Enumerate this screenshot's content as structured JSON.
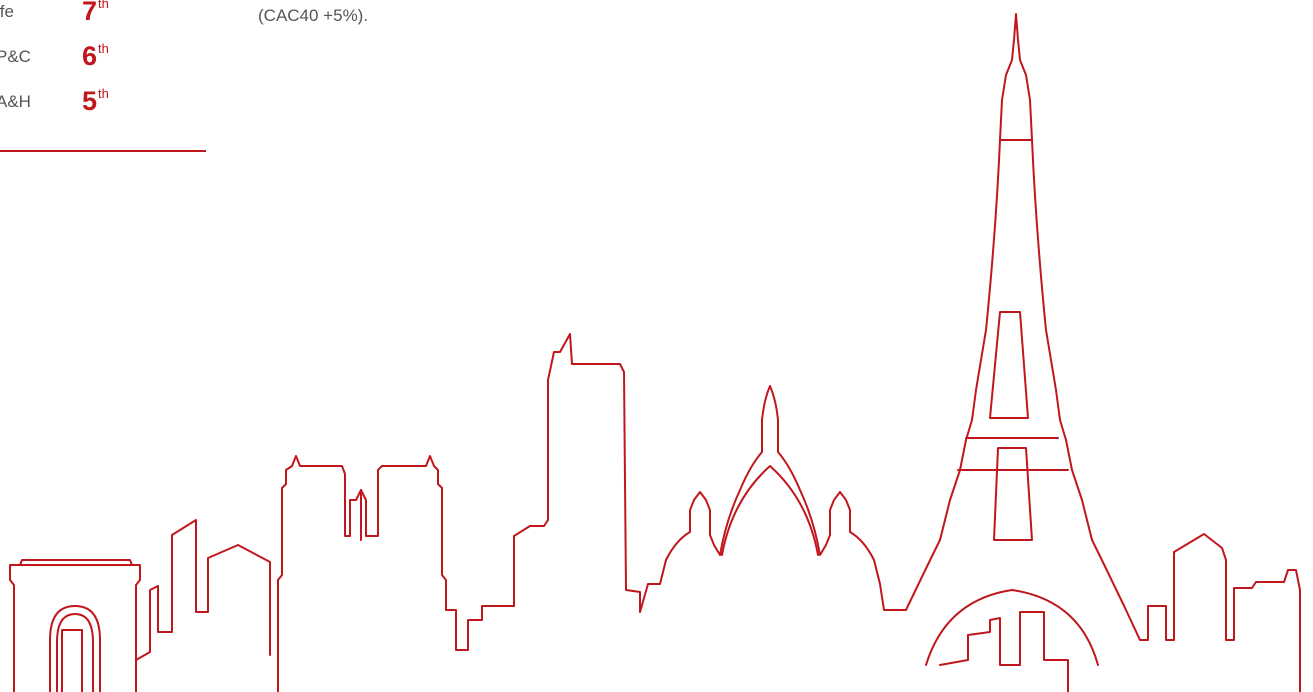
{
  "rankings": [
    {
      "label": "ife",
      "value": "7",
      "suffix": "th"
    },
    {
      "label": "P&C",
      "value": "6",
      "suffix": "th"
    },
    {
      "label": "A&H",
      "value": "5",
      "suffix": "th"
    }
  ],
  "note": "(CAC40 +5%).",
  "colors": {
    "accent": "#c0171c",
    "text": "#555555",
    "background": "#ffffff"
  },
  "illustration": "paris-skyline-outline"
}
